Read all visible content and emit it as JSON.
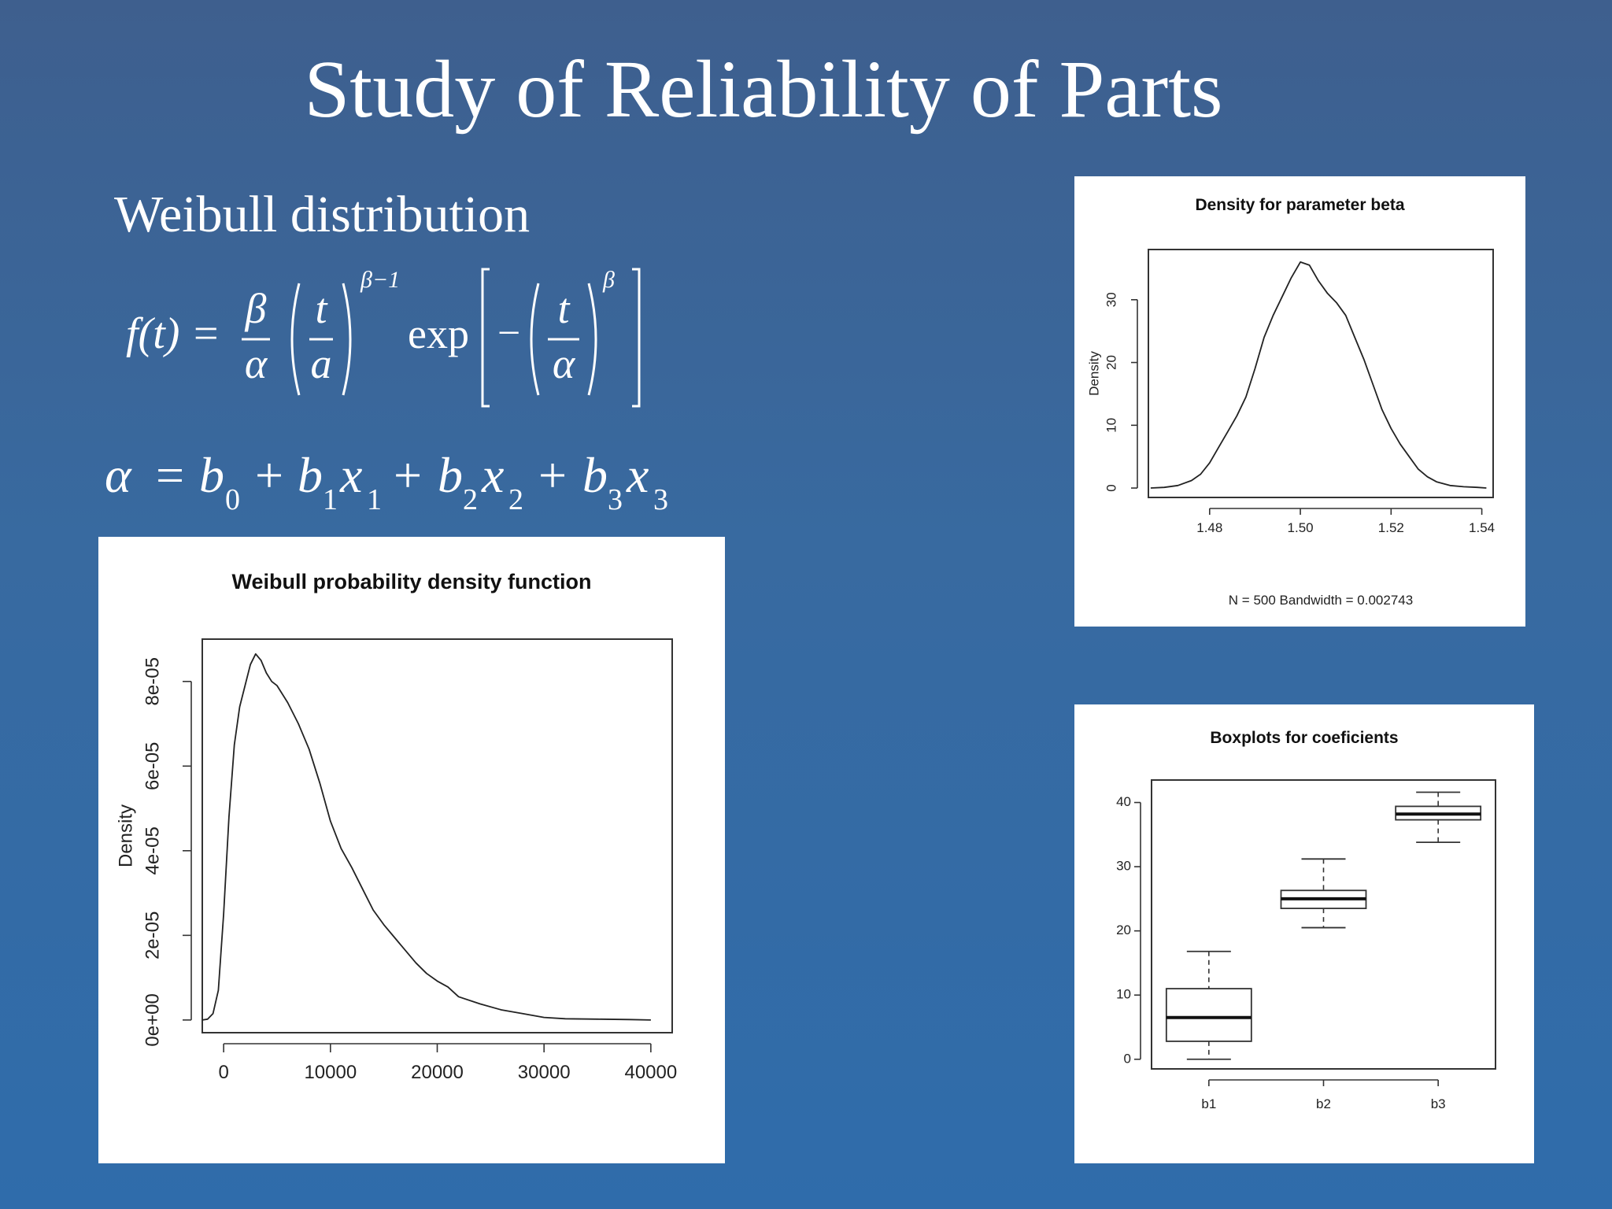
{
  "slide": {
    "title": "Study of  Reliability of  Parts",
    "subtitle": "Weibull distribution"
  },
  "formulas": {
    "pdf": {
      "lhs": "f(t) =",
      "frac1_num": "β",
      "frac1_den": "α",
      "frac2_num": "t",
      "frac2_den": "a",
      "exp1": "β−1",
      "exp_label": "exp",
      "minus": "−",
      "frac3_num": "t",
      "frac3_den": "α",
      "exp2": "β"
    },
    "alpha": {
      "alpha": "α",
      "eq": "=",
      "plus": "+",
      "b": "b",
      "x": "x",
      "s0": "0",
      "s1": "1",
      "s2": "2",
      "s3": "3"
    }
  },
  "chart_data": [
    {
      "type": "line",
      "title": "Weibull probability density function",
      "xlabel": "",
      "ylabel": "Density",
      "xlim": [
        -2000,
        42000
      ],
      "ylim": [
        -3e-06,
        9e-05
      ],
      "x_ticks": [
        0,
        10000,
        20000,
        30000,
        40000
      ],
      "x_tick_labels": [
        "0",
        "10000",
        "20000",
        "30000",
        "40000"
      ],
      "y_ticks": [
        0,
        2e-05,
        4e-05,
        6e-05,
        8e-05
      ],
      "y_tick_labels": [
        "0e+00",
        "2e-05",
        "4e-05",
        "6e-05",
        "8e-05"
      ],
      "x": [
        -2000,
        -1500,
        -1000,
        -500,
        0,
        500,
        1000,
        1500,
        2000,
        2500,
        3000,
        3500,
        4000,
        4500,
        5000,
        6000,
        7000,
        8000,
        9000,
        10000,
        11000,
        12000,
        13000,
        14000,
        15000,
        16000,
        17000,
        18000,
        19000,
        20000,
        21000,
        22000,
        24000,
        26000,
        28000,
        30000,
        32000,
        35000,
        38000,
        40000
      ],
      "y": [
        0,
        2e-07,
        1.5e-06,
        7e-06,
        2.5e-05,
        4.8e-05,
        6.5e-05,
        7.4e-05,
        7.9e-05,
        8.4e-05,
        8.65e-05,
        8.5e-05,
        8.2e-05,
        8e-05,
        7.9e-05,
        7.5e-05,
        7e-05,
        6.4e-05,
        5.6e-05,
        4.7e-05,
        4.05e-05,
        3.6e-05,
        3.1e-05,
        2.6e-05,
        2.25e-05,
        1.95e-05,
        1.65e-05,
        1.35e-05,
        1.1e-05,
        9.2e-06,
        7.8e-06,
        5.5e-06,
        3.8e-06,
        2.4e-06,
        1.5e-06,
        6e-07,
        3e-07,
        2e-07,
        1e-07,
        0
      ]
    },
    {
      "type": "line",
      "title": "Density for parameter beta",
      "xlabel": "N = 500   Bandwidth = 0.002743",
      "ylabel": "Density",
      "xlim": [
        1.4665,
        1.5425
      ],
      "ylim": [
        -1.5,
        38
      ],
      "x_ticks": [
        1.48,
        1.5,
        1.52,
        1.54
      ],
      "x_tick_labels": [
        "1.48",
        "1.50",
        "1.52",
        "1.54"
      ],
      "y_ticks": [
        0,
        10,
        20,
        30
      ],
      "y_tick_labels": [
        "0",
        "10",
        "20",
        "30"
      ],
      "x": [
        1.467,
        1.47,
        1.473,
        1.476,
        1.478,
        1.48,
        1.482,
        1.484,
        1.486,
        1.488,
        1.49,
        1.492,
        1.494,
        1.496,
        1.498,
        1.5,
        1.502,
        1.504,
        1.506,
        1.508,
        1.51,
        1.512,
        1.514,
        1.516,
        1.518,
        1.52,
        1.522,
        1.524,
        1.526,
        1.528,
        1.53,
        1.533,
        1.536,
        1.539,
        1.541
      ],
      "y": [
        0,
        0.1,
        0.4,
        1.2,
        2.2,
        4,
        6.5,
        9,
        11.5,
        14.5,
        19,
        24,
        27.5,
        30.5,
        33.5,
        36,
        35.5,
        33,
        31,
        29.5,
        27.5,
        24,
        20.5,
        16.5,
        12.5,
        9.5,
        7,
        5,
        3,
        1.8,
        1,
        0.4,
        0.2,
        0.1,
        0
      ]
    },
    {
      "type": "box",
      "title": "Boxplots for coeficients",
      "xlabel": "",
      "ylabel": "",
      "ylim": [
        -1.5,
        43.5
      ],
      "y_ticks": [
        0,
        10,
        20,
        30,
        40
      ],
      "y_tick_labels": [
        "0",
        "10",
        "20",
        "30",
        "40"
      ],
      "categories": [
        "b1",
        "b2",
        "b3"
      ],
      "boxes": [
        {
          "name": "b1",
          "whisker_low": 0,
          "q1": 2.8,
          "median": 6.5,
          "q3": 11,
          "whisker_high": 16.8
        },
        {
          "name": "b2",
          "whisker_low": 20.5,
          "q1": 23.5,
          "median": 25,
          "q3": 26.3,
          "whisker_high": 31.2
        },
        {
          "name": "b3",
          "whisker_low": 33.8,
          "q1": 37.3,
          "median": 38.2,
          "q3": 39.4,
          "whisker_high": 41.6
        }
      ]
    }
  ]
}
